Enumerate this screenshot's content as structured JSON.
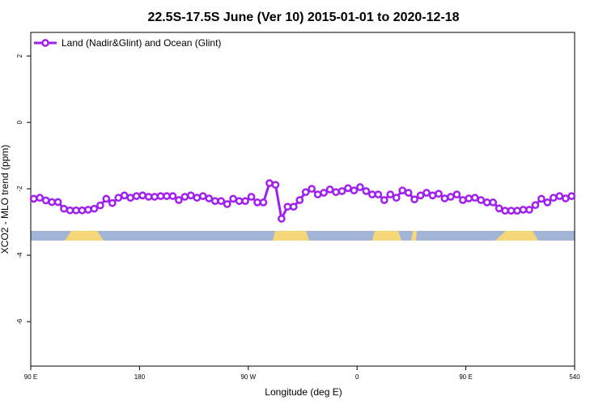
{
  "chart_data": {
    "type": "line",
    "title": "22.5S-17.5S June (Ver 10)   2015-01-01 to 2020-12-18",
    "x_label": "Longitude (deg E)",
    "y_label": "XCO2 - MLO trend (ppm)",
    "x": [
      92.5,
      97.5,
      102.5,
      107.5,
      112.5,
      117.5,
      122.5,
      127.5,
      132.5,
      137.5,
      142.5,
      147.5,
      152.5,
      157.5,
      162.5,
      167.5,
      172.5,
      177.5,
      182.5,
      187.5,
      192.5,
      197.5,
      202.5,
      207.5,
      212.5,
      217.5,
      222.5,
      227.5,
      232.5,
      237.5,
      242.5,
      247.5,
      252.5,
      257.5,
      262.5,
      267.5,
      272.5,
      277.5,
      282.5,
      287.5,
      292.5,
      297.5,
      302.5,
      307.5,
      312.5,
      317.5,
      322.5,
      327.5,
      332.5,
      337.5,
      342.5,
      347.5,
      352.5,
      357.5,
      362.5,
      367.5,
      372.5,
      377.5,
      382.5,
      387.5,
      392.5,
      397.5,
      402.5,
      407.5,
      412.5,
      417.5,
      422.5,
      427.5,
      432.5,
      437.5,
      442.5,
      447.5,
      452.5,
      457.5,
      462.5,
      467.5,
      472.5,
      477.5,
      482.5,
      487.5,
      492.5,
      497.5,
      502.5,
      507.5,
      512.5,
      517.5,
      522.5,
      527.5,
      532.5,
      537.5
    ],
    "series": [
      {
        "name": "Land (Nadir&Glint) and Ocean (Glint)",
        "color": "#a020f0",
        "values": [
          -2.3,
          -2.27,
          -2.35,
          -2.4,
          -2.4,
          -2.6,
          -2.65,
          -2.65,
          -2.65,
          -2.63,
          -2.6,
          -2.5,
          -2.3,
          -2.43,
          -2.27,
          -2.2,
          -2.27,
          -2.22,
          -2.2,
          -2.24,
          -2.24,
          -2.22,
          -2.22,
          -2.22,
          -2.34,
          -2.24,
          -2.2,
          -2.27,
          -2.22,
          -2.29,
          -2.37,
          -2.37,
          -2.46,
          -2.3,
          -2.37,
          -2.37,
          -2.24,
          -2.41,
          -2.41,
          -1.83,
          -1.88,
          -2.9,
          -2.54,
          -2.54,
          -2.34,
          -2.1,
          -2.0,
          -2.17,
          -2.12,
          -2.02,
          -2.1,
          -2.07,
          -1.98,
          -2.05,
          -1.95,
          -2.07,
          -2.17,
          -2.17,
          -2.34,
          -2.17,
          -2.27,
          -2.05,
          -2.12,
          -2.32,
          -2.2,
          -2.12,
          -2.2,
          -2.15,
          -2.29,
          -2.24,
          -2.17,
          -2.34,
          -2.29,
          -2.27,
          -2.34,
          -2.41,
          -2.41,
          -2.59,
          -2.66,
          -2.66,
          -2.66,
          -2.63,
          -2.63,
          -2.49,
          -2.3,
          -2.41,
          -2.27,
          -2.22,
          -2.29,
          -2.22
        ]
      }
    ],
    "xlim": [
      90,
      540
    ],
    "xticks": [
      {
        "value": 90,
        "label": "90 E"
      },
      180,
      {
        "value": 270,
        "label": "90 W"
      },
      {
        "value": 360,
        "label": "0"
      },
      {
        "value": 450,
        "label": "90 E"
      },
      540
    ],
    "ylim": [
      -7.34,
      2.71
    ],
    "yticks": [
      2,
      0,
      -2,
      -4,
      -6
    ],
    "legend": "top-left"
  }
}
